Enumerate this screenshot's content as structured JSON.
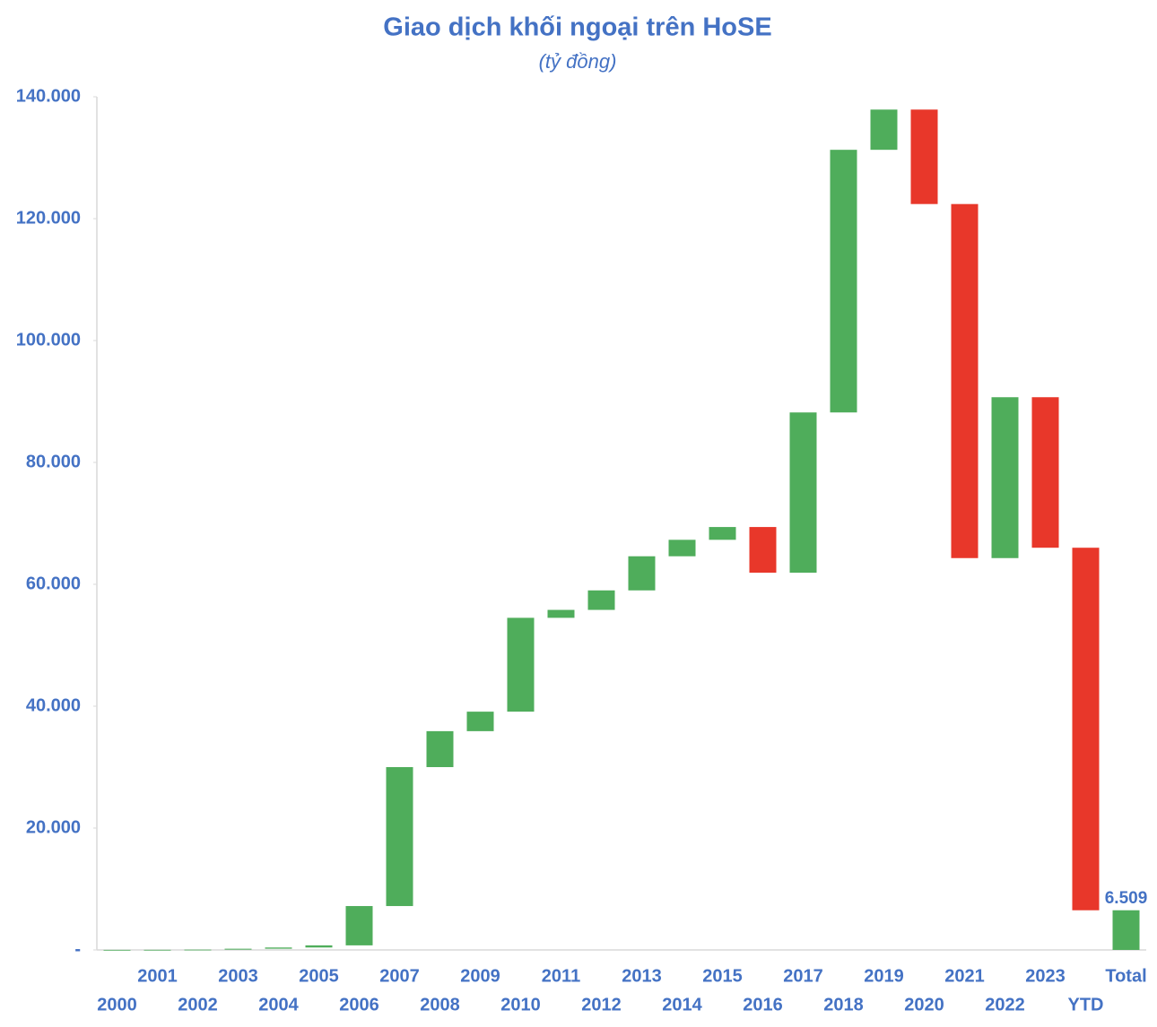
{
  "chart_data": {
    "type": "waterfall",
    "title": "Giao dịch khối ngoại trên HoSE",
    "subtitle": "(tỷ đồng)",
    "categories": [
      "2000",
      "2001",
      "2002",
      "2003",
      "2004",
      "2005",
      "2006",
      "2007",
      "2008",
      "2009",
      "2010",
      "2011",
      "2012",
      "2013",
      "2014",
      "2015",
      "2016",
      "2017",
      "2018",
      "2019",
      "2020",
      "2021",
      "2022",
      "2023",
      "YTD",
      "Total"
    ],
    "values": [
      10,
      10,
      30,
      150,
      200,
      350,
      6450,
      22800,
      5900,
      3200,
      15400,
      1300,
      3200,
      5600,
      2700,
      2100,
      -7500,
      26300,
      43100,
      6600,
      -15500,
      -58100,
      26400,
      -24700,
      -59491,
      6509
    ],
    "is_total": [
      false,
      false,
      false,
      false,
      false,
      false,
      false,
      false,
      false,
      false,
      false,
      false,
      false,
      false,
      false,
      false,
      false,
      false,
      false,
      false,
      false,
      false,
      false,
      false,
      false,
      true
    ],
    "value_labels": [
      null,
      null,
      null,
      null,
      null,
      null,
      null,
      null,
      null,
      null,
      null,
      null,
      null,
      null,
      null,
      null,
      null,
      null,
      null,
      null,
      null,
      null,
      null,
      null,
      null,
      "6.509"
    ],
    "colors": {
      "increase": "#4fad5b",
      "decrease": "#e8372a"
    },
    "ylim": [
      0,
      140000
    ],
    "yticks": [
      {
        "value": 0,
        "label": "-"
      },
      {
        "value": 20000,
        "label": "20.000"
      },
      {
        "value": 40000,
        "label": "40.000"
      },
      {
        "value": 60000,
        "label": "60.000"
      },
      {
        "value": 80000,
        "label": "80.000"
      },
      {
        "value": 100000,
        "label": "100.000"
      },
      {
        "value": 120000,
        "label": "120.000"
      },
      {
        "value": 140000,
        "label": "140.000"
      }
    ],
    "grid": false
  }
}
